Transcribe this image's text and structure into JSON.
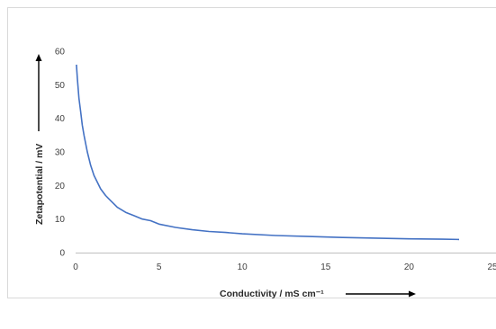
{
  "chart_data": {
    "type": "line",
    "title": "",
    "xlabel": "Conductivity / mS cm⁻¹",
    "ylabel": "Zetapotential / mV",
    "xlim": [
      0,
      25
    ],
    "ylim": [
      0,
      60
    ],
    "x_ticks": [
      "0",
      "5",
      "10",
      "15",
      "20",
      "25"
    ],
    "y_ticks": [
      "0",
      "10",
      "20",
      "30",
      "40",
      "50",
      "60"
    ],
    "grid": false,
    "legend": "none",
    "line_color": "#4472c4",
    "series": [
      {
        "x": [
          0.05,
          0.1,
          0.2,
          0.3,
          0.4,
          0.5,
          0.7,
          0.9,
          1.1,
          1.3,
          1.5,
          1.8,
          2.0,
          2.5,
          3.0,
          3.5,
          4.0,
          4.5,
          5.0,
          6.0,
          7.0,
          8.0,
          9.0,
          10.0,
          12.0,
          14.0,
          16.0,
          18.0,
          20.0,
          22.0,
          23.0
        ],
        "values": [
          56,
          52,
          46,
          42,
          38,
          35,
          30,
          26,
          23,
          21,
          19,
          17,
          16,
          13.5,
          12,
          11,
          10,
          9.5,
          8.5,
          7.5,
          6.8,
          6.3,
          6.0,
          5.6,
          5.1,
          4.8,
          4.5,
          4.3,
          4.1,
          4.0,
          3.9
        ]
      }
    ]
  }
}
